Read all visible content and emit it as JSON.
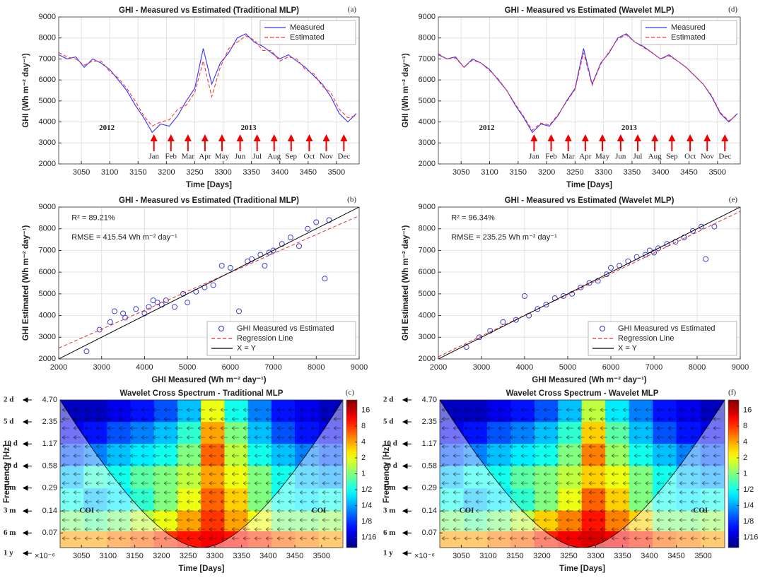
{
  "chart_data": [
    {
      "type": "line",
      "label": "(a)",
      "title": "GHI - Measured vs Estimated (Traditional MLP)",
      "xlabel": "Time [Days]",
      "ylabel": "GHI (Wh m⁻² day⁻¹)",
      "x": [
        3010,
        3025,
        3040,
        3055,
        3070,
        3085,
        3100,
        3115,
        3130,
        3145,
        3160,
        3175,
        3190,
        3205,
        3220,
        3235,
        3250,
        3265,
        3280,
        3295,
        3310,
        3325,
        3340,
        3355,
        3370,
        3385,
        3400,
        3415,
        3430,
        3445,
        3460,
        3475,
        3490,
        3505,
        3520,
        3535
      ],
      "series": [
        {
          "name": "Measured",
          "color": "#3333ff",
          "linestyle": "solid",
          "values": [
            7200,
            7000,
            7100,
            6600,
            7000,
            6800,
            6500,
            6000,
            5500,
            4800,
            4200,
            3500,
            3900,
            3800,
            4300,
            5000,
            5600,
            7500,
            5800,
            6800,
            7300,
            8000,
            8200,
            7800,
            7600,
            7300,
            7000,
            7200,
            6900,
            6600,
            6200,
            5800,
            5200,
            4400,
            4000,
            4400
          ]
        },
        {
          "name": "Estimated",
          "color": "#ff3333",
          "linestyle": "dashed",
          "values": [
            7300,
            7100,
            7000,
            6700,
            6900,
            6900,
            6400,
            6100,
            5600,
            5000,
            4300,
            3800,
            4000,
            4100,
            4600,
            4800,
            5400,
            6900,
            5200,
            6600,
            7500,
            7800,
            8100,
            7900,
            7400,
            7400,
            6900,
            7100,
            7000,
            6500,
            6300,
            5700,
            5400,
            4600,
            4200,
            4300
          ]
        }
      ],
      "xlim": [
        3010,
        3540
      ],
      "xticks": [
        3050,
        3100,
        3150,
        3200,
        3250,
        3300,
        3350,
        3400,
        3450,
        3500
      ],
      "ylim": [
        2000,
        9000
      ],
      "yticks": [
        2000,
        3000,
        4000,
        5000,
        6000,
        7000,
        8000,
        9000
      ],
      "grid": true,
      "legend": "upper right",
      "years": [
        {
          "text": "2012",
          "x": 3095,
          "y": 3700
        },
        {
          "text": "2013",
          "x": 3345,
          "y": 3700
        }
      ],
      "months": [
        {
          "text": "Jan",
          "x": 3178
        },
        {
          "text": "Feb",
          "x": 3208
        },
        {
          "text": "Mar",
          "x": 3238
        },
        {
          "text": "Apr",
          "x": 3268
        },
        {
          "text": "May",
          "x": 3298
        },
        {
          "text": "Jun",
          "x": 3330
        },
        {
          "text": "Jul",
          "x": 3360
        },
        {
          "text": "Aug",
          "x": 3390
        },
        {
          "text": "Sep",
          "x": 3420
        },
        {
          "text": "Oct",
          "x": 3452
        },
        {
          "text": "Nov",
          "x": 3482
        },
        {
          "text": "Dec",
          "x": 3513
        }
      ]
    },
    {
      "type": "scatter",
      "label": "(b)",
      "title": "GHI - Measured vs Estimated (Traditional MLP)",
      "xlabel": "GHI Measured (Wh m⁻² day⁻¹)",
      "ylabel": "GHI Estimated (Wh m⁻² day⁻¹)",
      "series": [
        {
          "name": "GHI Measured vs Estimated",
          "color": "#2b2bd0",
          "x": [
            2650,
            2950,
            3200,
            3300,
            3500,
            3550,
            3800,
            4000,
            4100,
            4200,
            4300,
            4400,
            4500,
            4700,
            4900,
            5000,
            5200,
            5400,
            5600,
            5800,
            6000,
            6200,
            6400,
            6500,
            6700,
            6800,
            6900,
            7000,
            7200,
            7400,
            7600,
            7800,
            8000,
            8200,
            8300
          ],
          "y": [
            2350,
            3350,
            3700,
            4200,
            4100,
            3900,
            4300,
            4100,
            4400,
            4700,
            4600,
            4500,
            4700,
            4400,
            5000,
            4600,
            5100,
            5300,
            5400,
            6300,
            6200,
            4200,
            6500,
            6600,
            6800,
            6300,
            6900,
            7000,
            7300,
            7600,
            7200,
            8000,
            8300,
            5700,
            8400
          ]
        }
      ],
      "lines": [
        {
          "name": "Regression Line",
          "color": "#e03030",
          "linestyle": "dashed",
          "x": [
            2000,
            9000
          ],
          "y": [
            2500,
            8600
          ]
        },
        {
          "name": "X = Y",
          "color": "#000000",
          "linestyle": "solid",
          "x": [
            2000,
            9000
          ],
          "y": [
            2000,
            9000
          ]
        }
      ],
      "annotations": [
        {
          "text": "R² = 89.21%",
          "x": 2300,
          "y": 8500
        },
        {
          "text": "RMSE = 415.54 Wh m⁻² day⁻¹",
          "x": 2300,
          "y": 7600
        }
      ],
      "xlim": [
        2000,
        9000
      ],
      "xticks": [
        2000,
        3000,
        4000,
        5000,
        6000,
        7000,
        8000,
        9000
      ],
      "ylim": [
        2000,
        9000
      ],
      "yticks": [
        2000,
        3000,
        4000,
        5000,
        6000,
        7000,
        8000,
        9000
      ],
      "grid": true,
      "legend": "lower right"
    },
    {
      "type": "heatmap",
      "label": "(c)",
      "title": "Wavelet Cross Spectrum - Traditional MLP",
      "xlabel": "Time [Days]",
      "ylabel": "Frequency [Hz]",
      "multiplier": "×10⁻⁶",
      "x": [
        3032,
        3076,
        3120,
        3164,
        3208,
        3252,
        3296,
        3340,
        3384,
        3428,
        3472,
        3518
      ],
      "y": [
        3.3,
        1.66,
        0.83,
        0.41,
        0.2,
        0.1,
        0.055
      ],
      "values": [
        [
          0.06,
          0.06,
          0.08,
          0.1,
          0.15,
          0.3,
          2,
          0.5,
          0.2,
          0.1,
          0.08,
          0.06
        ],
        [
          0.08,
          0.1,
          0.15,
          0.2,
          0.3,
          0.6,
          4,
          1,
          0.3,
          0.15,
          0.1,
          0.08
        ],
        [
          0.15,
          0.2,
          0.3,
          0.4,
          0.5,
          1,
          6,
          1.5,
          0.5,
          0.3,
          0.2,
          0.15
        ],
        [
          0.3,
          0.6,
          0.5,
          0.8,
          1,
          1.5,
          4,
          2,
          1,
          0.5,
          0.3,
          0.25
        ],
        [
          0.5,
          0.3,
          0.4,
          0.6,
          1,
          2,
          6,
          3,
          1,
          0.5,
          0.4,
          0.5
        ],
        [
          1,
          0.8,
          1,
          1.5,
          2,
          4,
          8,
          4,
          2,
          1,
          1,
          1.2
        ],
        [
          4,
          4,
          5,
          6,
          8,
          10,
          12,
          10,
          8,
          6,
          5,
          4
        ]
      ],
      "xlim": [
        3010,
        3540
      ],
      "xticks": [
        3050,
        3100,
        3150,
        3200,
        3250,
        3300,
        3350,
        3400,
        3450,
        3500
      ],
      "ylim": [
        0.044,
        4.7
      ],
      "log_y": true,
      "yticks": [
        {
          "value": 4.7,
          "label": "4.70"
        },
        2.35,
        1.17,
        0.58,
        0.29,
        0.14,
        0.07
      ],
      "period_labels": [
        "2 d",
        "5 d",
        "10 d",
        "20 d",
        "1 m",
        "3 m",
        "6 m",
        "1 y"
      ],
      "coi": [
        {
          "text": "COI",
          "x": 3060,
          "y": 0.14
        },
        {
          "text": "COI",
          "x": 3495,
          "y": 0.14
        }
      ],
      "colorbar": {
        "lim": [
          0.04,
          25
        ],
        "ticks": [
          {
            "value": 0.0625,
            "label": "1/16"
          },
          {
            "value": 0.125,
            "label": "1/8"
          },
          {
            "value": 0.25,
            "label": "1/4"
          },
          {
            "value": 0.5,
            "label": "1/2"
          },
          1,
          2,
          4,
          8,
          16
        ]
      }
    },
    {
      "type": "line",
      "label": "(d)",
      "title": "GHI - Measured vs Estimated (Wavelet MLP)",
      "xlabel": "Time [Days]",
      "ylabel": "GHI (Wh m⁻² day⁻¹)",
      "x": [
        3010,
        3025,
        3040,
        3055,
        3070,
        3085,
        3100,
        3115,
        3130,
        3145,
        3160,
        3175,
        3190,
        3205,
        3220,
        3235,
        3250,
        3265,
        3280,
        3295,
        3310,
        3325,
        3340,
        3355,
        3370,
        3385,
        3400,
        3415,
        3430,
        3445,
        3460,
        3475,
        3490,
        3505,
        3520,
        3535
      ],
      "series": [
        {
          "name": "Measured",
          "color": "#3333ff",
          "linestyle": "solid",
          "values": [
            7200,
            7000,
            7100,
            6600,
            7000,
            6800,
            6500,
            6000,
            5500,
            4800,
            4200,
            3500,
            3900,
            3800,
            4300,
            5000,
            5600,
            7500,
            5800,
            6800,
            7300,
            8000,
            8200,
            7800,
            7600,
            7300,
            7000,
            7200,
            6900,
            6600,
            6200,
            5800,
            5200,
            4400,
            4000,
            4400
          ]
        },
        {
          "name": "Estimated",
          "color": "#ff3333",
          "linestyle": "dashed",
          "values": [
            7250,
            7000,
            7050,
            6600,
            6950,
            6800,
            6450,
            6050,
            5500,
            4850,
            4250,
            3600,
            3950,
            3850,
            4350,
            4950,
            5550,
            7300,
            5750,
            6750,
            7350,
            7950,
            8150,
            7800,
            7550,
            7300,
            7000,
            7150,
            6900,
            6600,
            6200,
            5800,
            5250,
            4450,
            4050,
            4350
          ]
        }
      ],
      "xlim": [
        3010,
        3540
      ],
      "xticks": [
        3050,
        3100,
        3150,
        3200,
        3250,
        3300,
        3350,
        3400,
        3450,
        3500
      ],
      "ylim": [
        2000,
        9000
      ],
      "yticks": [
        2000,
        3000,
        4000,
        5000,
        6000,
        7000,
        8000,
        9000
      ],
      "grid": true,
      "legend": "upper right",
      "years": [
        {
          "text": "2012",
          "x": 3095,
          "y": 3700
        },
        {
          "text": "2013",
          "x": 3345,
          "y": 3700
        }
      ],
      "months": [
        {
          "text": "Jan",
          "x": 3178
        },
        {
          "text": "Feb",
          "x": 3208
        },
        {
          "text": "Mar",
          "x": 3238
        },
        {
          "text": "Apr",
          "x": 3268
        },
        {
          "text": "May",
          "x": 3298
        },
        {
          "text": "Jun",
          "x": 3330
        },
        {
          "text": "Jul",
          "x": 3360
        },
        {
          "text": "Aug",
          "x": 3390
        },
        {
          "text": "Sep",
          "x": 3420
        },
        {
          "text": "Oct",
          "x": 3452
        },
        {
          "text": "Nov",
          "x": 3482
        },
        {
          "text": "Dec",
          "x": 3513
        }
      ]
    },
    {
      "type": "scatter",
      "label": "(e)",
      "title": "GHI - Measured vs Estimated (Wavelet MLP)",
      "xlabel": "GHI Measured (Wh m⁻² day⁻¹)",
      "ylabel": "GHI Estimated (Wh m⁻² day⁻¹)",
      "series": [
        {
          "name": "GHI Measured vs Estimated",
          "color": "#2b2bd0",
          "x": [
            2650,
            2950,
            3200,
            3500,
            3800,
            4000,
            4100,
            4300,
            4500,
            4700,
            4900,
            5100,
            5300,
            5500,
            5700,
            5900,
            6000,
            6200,
            6400,
            6600,
            6800,
            6900,
            7000,
            7100,
            7300,
            7500,
            7700,
            7900,
            8100,
            8200,
            8400
          ],
          "y": [
            2550,
            3000,
            3300,
            3700,
            3800,
            4900,
            4000,
            4300,
            4500,
            4800,
            4900,
            5000,
            5300,
            5500,
            5600,
            5900,
            6200,
            6300,
            6500,
            6700,
            6800,
            7000,
            6900,
            7100,
            7300,
            7400,
            7600,
            7900,
            8100,
            6600,
            8100
          ]
        }
      ],
      "lines": [
        {
          "name": "Regression Line",
          "color": "#e03030",
          "linestyle": "dashed",
          "x": [
            2000,
            9000
          ],
          "y": [
            2100,
            8800
          ]
        },
        {
          "name": "X = Y",
          "color": "#000000",
          "linestyle": "solid",
          "x": [
            2000,
            9000
          ],
          "y": [
            2000,
            9000
          ]
        }
      ],
      "annotations": [
        {
          "text": "R² = 96.34%",
          "x": 2300,
          "y": 8500
        },
        {
          "text": "RMSE = 235.25 Wh m⁻² day⁻¹",
          "x": 2300,
          "y": 7600
        }
      ],
      "xlim": [
        2000,
        9000
      ],
      "xticks": [
        2000,
        3000,
        4000,
        5000,
        6000,
        7000,
        8000,
        9000
      ],
      "ylim": [
        2000,
        9000
      ],
      "yticks": [
        2000,
        3000,
        4000,
        5000,
        6000,
        7000,
        8000,
        9000
      ],
      "grid": true,
      "legend": "lower right"
    },
    {
      "type": "heatmap",
      "label": "(f)",
      "title": "Wavelet Cross Spectrum - Wavelet MLP",
      "xlabel": "Time [Days]",
      "ylabel": "Frequency [Hz]",
      "multiplier": "×10⁻⁶",
      "x": [
        3032,
        3076,
        3120,
        3164,
        3208,
        3252,
        3296,
        3340,
        3384,
        3428,
        3472,
        3518
      ],
      "y": [
        3.3,
        1.66,
        0.83,
        0.41,
        0.2,
        0.1,
        0.055
      ],
      "values": [
        [
          0.06,
          0.06,
          0.08,
          0.1,
          0.15,
          0.3,
          1.5,
          0.4,
          0.2,
          0.1,
          0.08,
          0.06
        ],
        [
          0.08,
          0.1,
          0.15,
          0.2,
          0.3,
          0.6,
          3,
          0.8,
          0.3,
          0.15,
          0.1,
          0.08
        ],
        [
          0.15,
          0.2,
          0.3,
          0.4,
          0.5,
          1,
          5,
          1.2,
          0.5,
          0.3,
          0.2,
          0.15
        ],
        [
          0.3,
          0.5,
          0.5,
          0.8,
          1,
          1.5,
          3,
          2,
          1,
          0.5,
          0.3,
          0.25
        ],
        [
          0.5,
          0.3,
          0.4,
          0.6,
          1,
          2,
          6,
          3,
          1,
          0.5,
          0.4,
          0.5
        ],
        [
          1,
          0.8,
          1,
          1.5,
          3,
          5,
          10,
          5,
          3,
          1,
          1,
          1.2
        ],
        [
          4,
          4,
          5,
          6,
          9,
          12,
          14,
          12,
          9,
          6,
          5,
          4
        ]
      ],
      "xlim": [
        3010,
        3540
      ],
      "xticks": [
        3050,
        3100,
        3150,
        3200,
        3250,
        3300,
        3350,
        3400,
        3450,
        3500
      ],
      "ylim": [
        0.044,
        4.7
      ],
      "log_y": true,
      "yticks": [
        {
          "value": 4.7,
          "label": "4.70"
        },
        2.35,
        1.17,
        0.58,
        0.29,
        0.14,
        0.07
      ],
      "period_labels": [
        "2 d",
        "5 d",
        "10 d",
        "20 d",
        "1 m",
        "3 m",
        "6 m",
        "1 y"
      ],
      "coi": [
        {
          "text": "COI",
          "x": 3060,
          "y": 0.14
        },
        {
          "text": "COI",
          "x": 3495,
          "y": 0.14
        }
      ],
      "colorbar": {
        "lim": [
          0.04,
          25
        ],
        "ticks": [
          {
            "value": 0.0625,
            "label": "1/16"
          },
          {
            "value": 0.125,
            "label": "1/8"
          },
          {
            "value": 0.25,
            "label": "1/4"
          },
          {
            "value": 0.5,
            "label": "1/2"
          },
          1,
          2,
          4,
          8,
          16
        ]
      }
    }
  ]
}
